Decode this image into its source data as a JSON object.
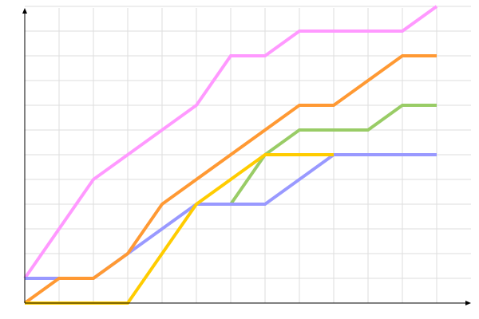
{
  "chart_data": {
    "type": "line",
    "title": "",
    "xlabel": "",
    "ylabel": "",
    "x": [
      0,
      1,
      2,
      3,
      4,
      5,
      6,
      7,
      8,
      9,
      10,
      11,
      12
    ],
    "xlim": [
      0,
      13
    ],
    "ylim": [
      0,
      12
    ],
    "grid": true,
    "legend": "none",
    "series": [
      {
        "color": "#ff99ff",
        "points": [
          [
            0,
            1
          ],
          [
            2,
            5
          ],
          [
            5,
            8
          ],
          [
            6,
            10
          ],
          [
            7,
            10
          ],
          [
            8,
            11
          ],
          [
            11,
            11
          ],
          [
            12,
            12
          ]
        ]
      },
      {
        "color": "#99cc66",
        "points": [
          [
            5,
            4
          ],
          [
            6,
            4
          ],
          [
            7,
            6
          ],
          [
            8,
            7
          ],
          [
            10,
            7
          ],
          [
            11,
            8
          ],
          [
            12,
            8
          ]
        ]
      },
      {
        "color": "#9999ff",
        "points": [
          [
            0,
            1
          ],
          [
            2,
            1
          ],
          [
            3,
            2
          ],
          [
            5,
            4
          ],
          [
            7,
            4
          ],
          [
            9,
            6
          ],
          [
            12,
            6
          ]
        ]
      },
      {
        "color": "#ff9933",
        "points": [
          [
            0,
            0
          ],
          [
            1,
            1
          ],
          [
            2,
            1
          ],
          [
            3,
            2
          ],
          [
            4,
            4
          ],
          [
            8,
            8
          ],
          [
            9,
            8
          ],
          [
            11,
            10
          ],
          [
            12,
            10
          ]
        ]
      },
      {
        "color": "#ffcc00",
        "points": [
          [
            0,
            0
          ],
          [
            3,
            0
          ],
          [
            5,
            4
          ],
          [
            7,
            6
          ],
          [
            9,
            6
          ]
        ]
      }
    ]
  }
}
